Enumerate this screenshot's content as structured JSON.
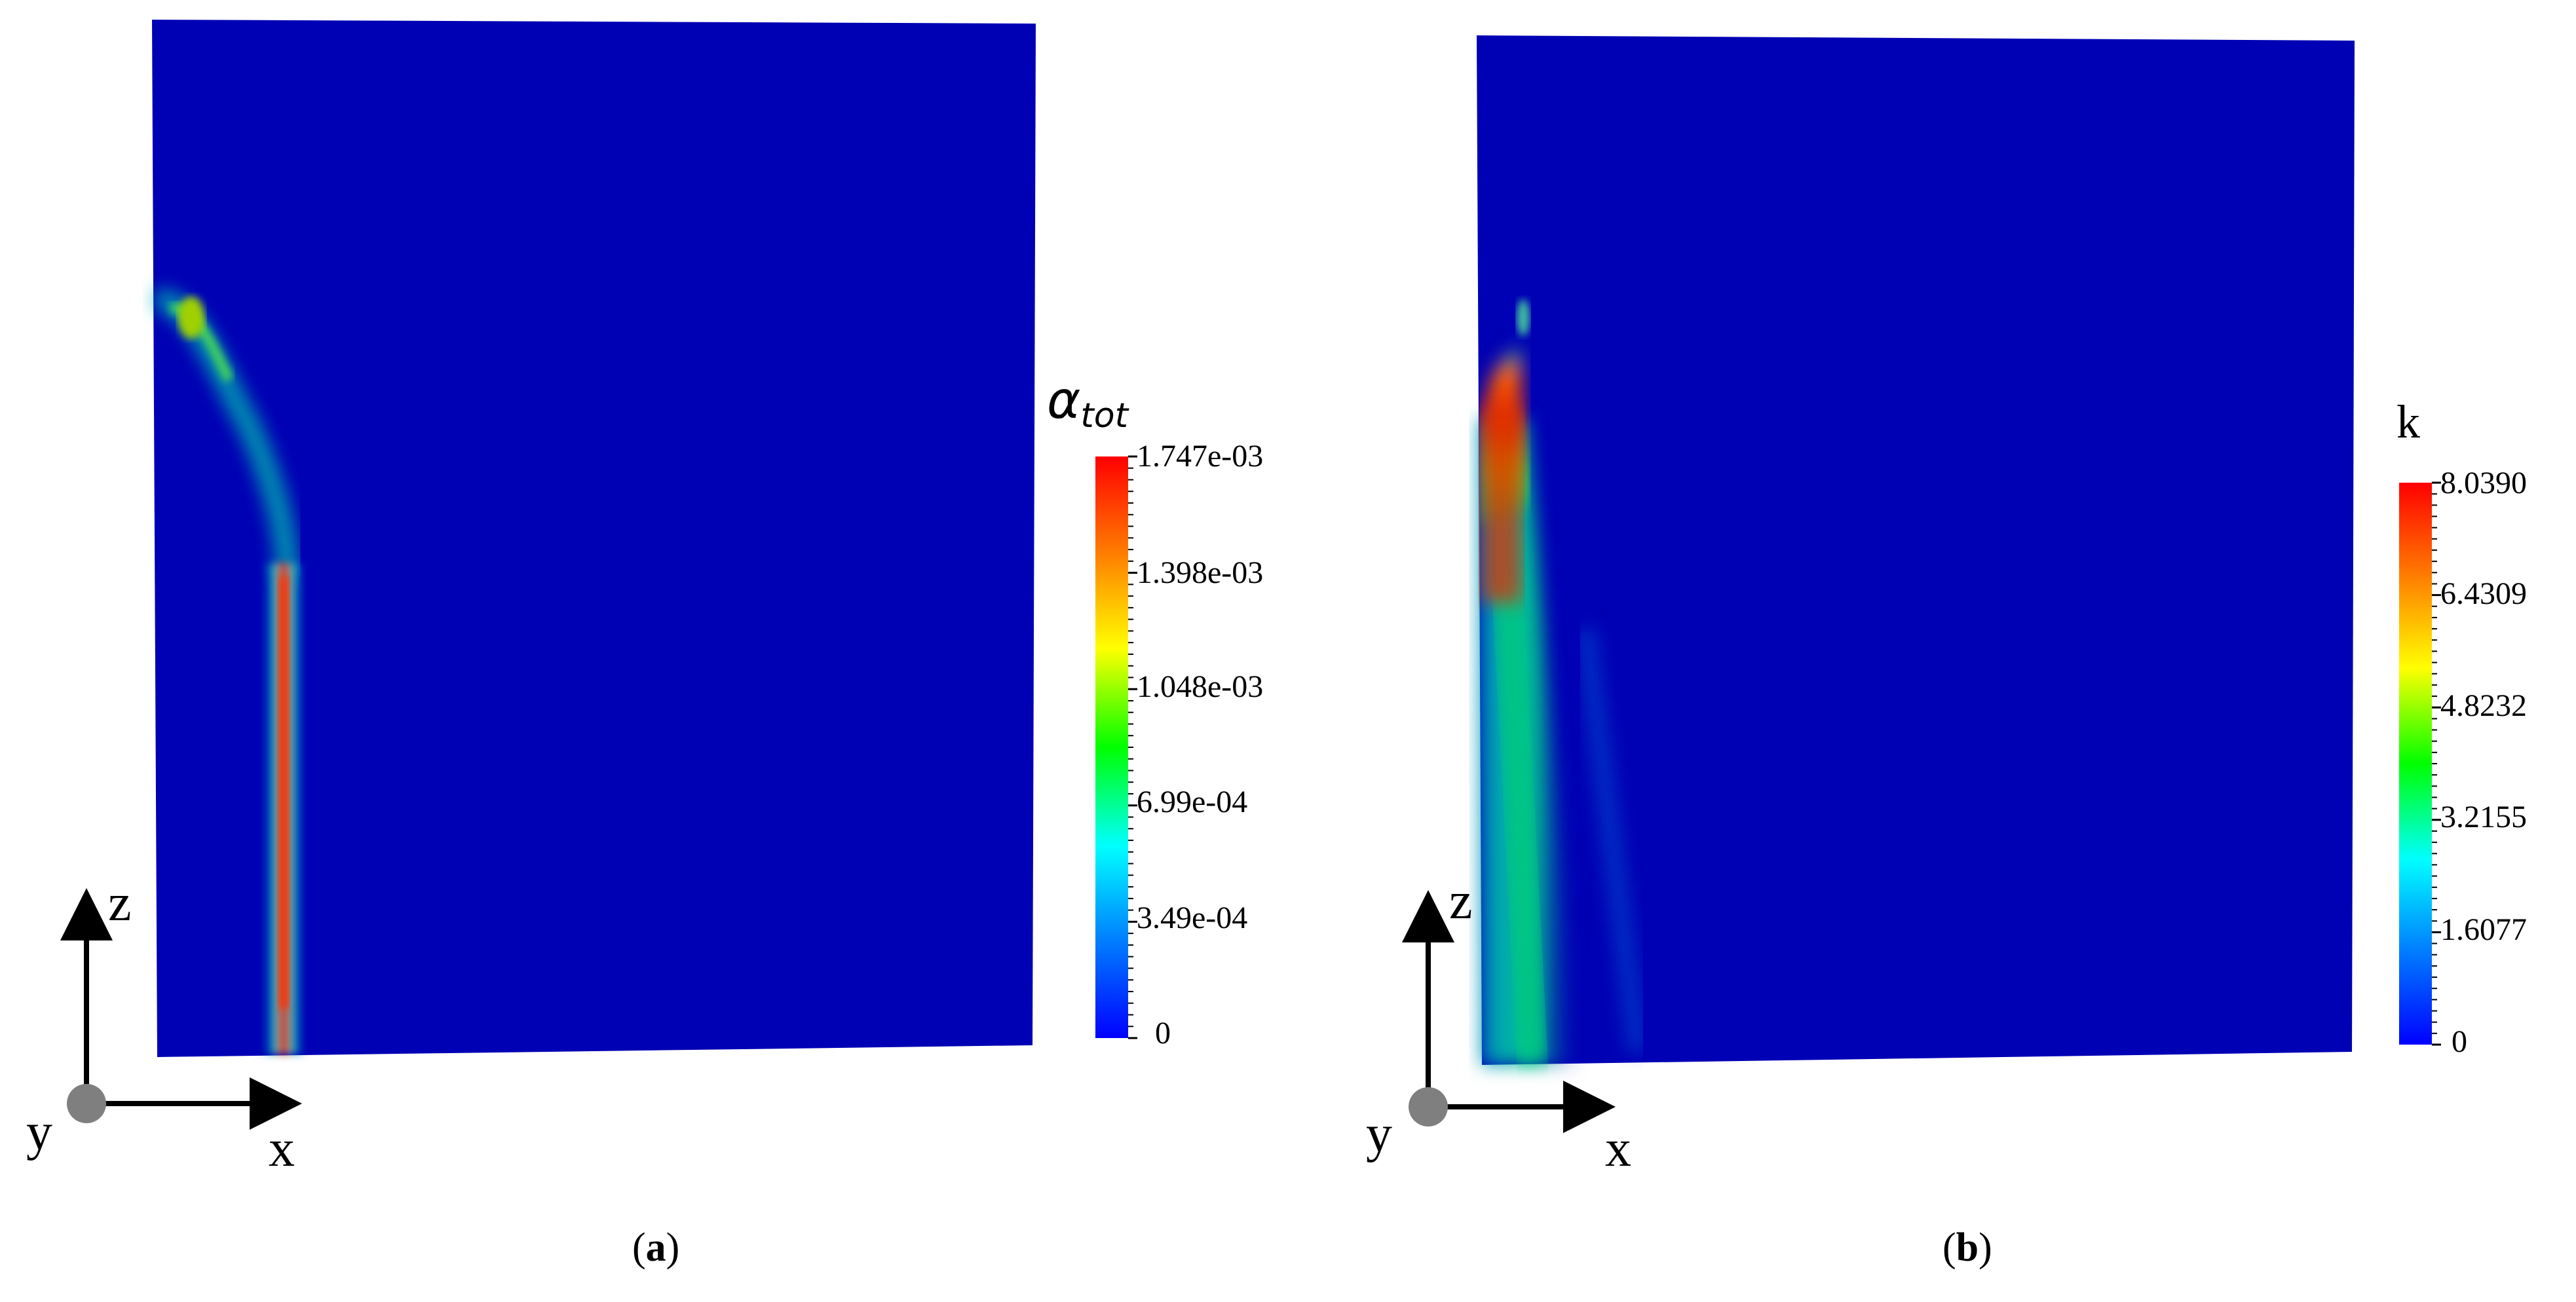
{
  "panels": [
    {
      "caption_letter": "a",
      "colorbar": {
        "title_symbol": "α",
        "title_subscript": "tot",
        "tick_labels": [
          "1.747e-03",
          "1.398e-03",
          "1.048e-03",
          "6.99e-04",
          "3.49e-04",
          "0"
        ]
      },
      "axes_labels": {
        "vertical": "z",
        "horizontal": "x",
        "normal": "y"
      }
    },
    {
      "caption_letter": "b",
      "colorbar": {
        "title": "k",
        "tick_labels": [
          "8.0390",
          "6.4309",
          "4.8232",
          "3.2155",
          "1.6077",
          "0"
        ]
      },
      "axes_labels": {
        "vertical": "z",
        "horizontal": "x",
        "normal": "y"
      }
    }
  ],
  "colors": {
    "background_field": "#0000b4",
    "colormap": [
      "#0000ff",
      "#0080ff",
      "#00ffff",
      "#00ff00",
      "#ffff00",
      "#ff8000",
      "#ff0000"
    ]
  }
}
